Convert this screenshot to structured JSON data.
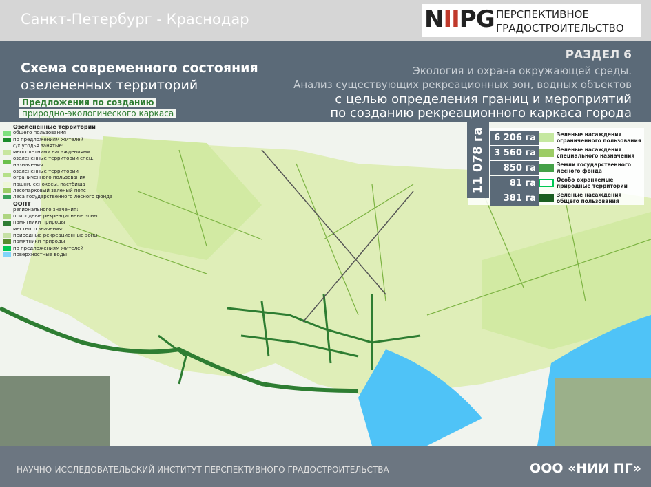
{
  "header": {
    "city": "Санкт-Петербург - Краснодар",
    "logo": "NIIPG",
    "org_line1": "ПЕРСПЕКТИВНОЕ",
    "org_line2": "ГРАДОСТРОИТЕЛЬСТВО"
  },
  "title": {
    "line1": "Схема современного состояния",
    "line2": "озелененных территорий"
  },
  "section": {
    "label": "РАЗДЕЛ 6",
    "lines": [
      "Экология и охрана окружающей среды.",
      "Анализ существующих рекреационных зон, водных объектов",
      "с целью определения границ и мероприятий",
      "по созданию рекреационного каркаса города"
    ]
  },
  "proposals": {
    "title": "Предложения по созданию",
    "subtitle": "природно-экологического каркаса"
  },
  "legend": {
    "items": [
      "Озелененные территории",
      "общего пользования",
      "по предложениям жителей",
      "с/х угодья занятые:",
      "многолетними насаждениями",
      "озелененные территории спец. назначения",
      "озелененные территории ограниченного пользования",
      "пашни, сенокосы, пастбища",
      "лесопарковый зеленый пояс",
      "леса государственного лесного фонда",
      "ООПТ",
      "регионального значения:",
      "природные рекреационные зоны",
      "памятники природы",
      "местного значения:",
      "природные рекреационные зоны",
      "памятники природы",
      "по предложениям жителей",
      "поверхностные воды"
    ]
  },
  "stats": {
    "total": "11 078 га",
    "rows": [
      {
        "value": "6 206 га",
        "label": "Зеленые насаждения ограниченного пользования"
      },
      {
        "value": "3 560 га",
        "label": "Зеленые насаждения специального назначения"
      },
      {
        "value": "850 га",
        "label": "Земли государственного лесного фонда"
      },
      {
        "value": "81 га",
        "label": "Особо охраняемые природные территории"
      },
      {
        "value": "381 га",
        "label": "Зеленые насаждения общего пользования"
      }
    ]
  },
  "footer": {
    "institute": "НАУЧНО-ИССЛЕДОВАТЕЛЬСКИЙ ИНСТИТУТ ПЕРСПЕКТИВНОГО ГРАДОСТРОИТЕЛЬСТВА",
    "company": "ООО «НИИ ПГ»"
  }
}
